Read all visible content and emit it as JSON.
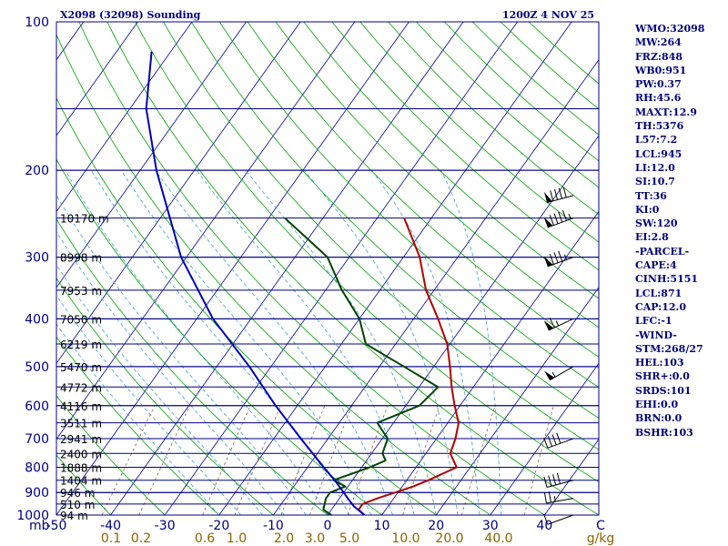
{
  "chart_data": {
    "type": "line",
    "title": "X2098 (32098) Sounding",
    "valid_time": "1200Z  4 NOV 25",
    "x_axis": {
      "label": "C",
      "range": [
        -50,
        50
      ],
      "ticks": [
        -40,
        -30,
        -20,
        -10,
        0,
        10,
        20,
        30,
        40
      ],
      "tick_labels": [
        "-40",
        "-30",
        "-20",
        "-10",
        "0",
        "10",
        "20",
        "30",
        "40"
      ],
      "start_label": "-50",
      "unit_label": "C"
    },
    "y_axis": {
      "label": "mb",
      "range": [
        1000,
        100
      ],
      "ticks": [
        100,
        200,
        300,
        400,
        500,
        600,
        700,
        800,
        900,
        1000
      ],
      "tick_labels": [
        "100",
        "200",
        "300",
        "400",
        "500",
        "600",
        "700",
        "800",
        "900",
        "1000"
      ]
    },
    "mixing_ratio_labels": [
      "0.1",
      "0.2",
      "0.6",
      "1.0",
      "2.0",
      "3.0",
      "5.0",
      "10.0",
      "20.0",
      "40.0",
      "g/kg"
    ],
    "mixing_ratio_values": [
      0.1,
      0.2,
      0.6,
      1.0,
      2.0,
      3.0,
      5.0,
      10.0,
      20.0,
      40.0
    ],
    "height_levels": [
      {
        "p": 250,
        "label": "10170 m"
      },
      {
        "p": 300,
        "label": "8998 m"
      },
      {
        "p": 350,
        "label": "7953 m"
      },
      {
        "p": 400,
        "label": "7050 m"
      },
      {
        "p": 450,
        "label": "6219 m"
      },
      {
        "p": 500,
        "label": "5470 m"
      },
      {
        "p": 550,
        "label": "4772 m"
      },
      {
        "p": 600,
        "label": "4116 m"
      },
      {
        "p": 650,
        "label": "3511 m"
      },
      {
        "p": 700,
        "label": "2941 m"
      },
      {
        "p": 750,
        "label": "2400 m"
      },
      {
        "p": 800,
        "label": "1888 m"
      },
      {
        "p": 850,
        "label": "1404 m"
      },
      {
        "p": 900,
        "label": "946 m"
      },
      {
        "p": 950,
        "label": "510 m"
      },
      {
        "p": 1000,
        "label": "94 m"
      }
    ],
    "series": [
      {
        "name": "Temperature",
        "color": "#b40000",
        "points": [
          [
            1000,
            6.8
          ],
          [
            975,
            5.0
          ],
          [
            950,
            5.0
          ],
          [
            925,
            7.0
          ],
          [
            900,
            9.5
          ],
          [
            875,
            12.0
          ],
          [
            850,
            14.0
          ],
          [
            800,
            17.5
          ],
          [
            750,
            14.5
          ],
          [
            700,
            13.5
          ],
          [
            650,
            12.0
          ],
          [
            600,
            9.0
          ],
          [
            550,
            6.0
          ],
          [
            500,
            3.0
          ],
          [
            450,
            -0.5
          ],
          [
            400,
            -5.5
          ],
          [
            350,
            -11.5
          ],
          [
            300,
            -17.0
          ],
          [
            250,
            -25.0
          ]
        ]
      },
      {
        "name": "Dewpoint",
        "color": "#004400",
        "points": [
          [
            1000,
            0.7
          ],
          [
            975,
            -1.5
          ],
          [
            950,
            -2.0
          ],
          [
            925,
            -2.5
          ],
          [
            900,
            -2.5
          ],
          [
            875,
            -0.5
          ],
          [
            850,
            -3.5
          ],
          [
            800,
            1.5
          ],
          [
            775,
            3.5
          ],
          [
            750,
            2.0
          ],
          [
            700,
            1.0
          ],
          [
            650,
            -3.0
          ],
          [
            600,
            2.5
          ],
          [
            550,
            3.5
          ],
          [
            500,
            -5.5
          ],
          [
            450,
            -15.5
          ],
          [
            400,
            -20.0
          ],
          [
            350,
            -27.0
          ],
          [
            300,
            -34.0
          ],
          [
            250,
            -47.0
          ]
        ]
      },
      {
        "name": "Parcel",
        "color": "#0000b4",
        "points": [
          [
            1000,
            6.8
          ],
          [
            960,
            3.7
          ],
          [
            925,
            1.5
          ],
          [
            900,
            0.0
          ],
          [
            850,
            -3.3
          ],
          [
            800,
            -7.0
          ],
          [
            700,
            -15.0
          ],
          [
            600,
            -24.0
          ],
          [
            500,
            -34.0
          ],
          [
            400,
            -47.0
          ],
          [
            300,
            -61.0
          ],
          [
            200,
            -77.0
          ],
          [
            150,
            -87.0
          ],
          [
            115,
            -93.5
          ]
        ]
      }
    ],
    "wind_barbs": [
      {
        "p": 1000,
        "dir": 250,
        "spd": 10
      },
      {
        "p": 925,
        "dir": 260,
        "spd": 25
      },
      {
        "p": 850,
        "dir": 255,
        "spd": 40
      },
      {
        "p": 700,
        "dir": 250,
        "spd": 40
      },
      {
        "p": 500,
        "dir": 240,
        "spd": 55
      },
      {
        "p": 400,
        "dir": 245,
        "spd": 65
      },
      {
        "p": 300,
        "dir": 250,
        "spd": 85
      },
      {
        "p": 250,
        "dir": 250,
        "spd": 95
      },
      {
        "p": 225,
        "dir": 255,
        "spd": 90
      }
    ],
    "grid": true,
    "skew_factor": 65
  },
  "indices": [
    "WMO:32098",
    "MW:264",
    "FRZ:848",
    "WB0:951",
    "PW:0.37",
    "RH:45.6",
    "MAXT:12.9",
    "TH:5376",
    "L57:7.2",
    "LCL:945",
    "LI:12.0",
    "SI:10.7",
    "TT:36",
    "KI:0",
    "SW:120",
    "EI:2.8",
    "-PARCEL-",
    "CAPE:4",
    "CINH:5151",
    "LCL:871",
    "CAP:12.0",
    "LFC:-1",
    "-WIND-",
    "STM:268/27",
    "HEL:103",
    "SHR+:0.0",
    "SRDS:101",
    "EHI:0.0",
    "BRN:0.0",
    "BSHR:103"
  ],
  "colors": {
    "border": "#000080",
    "isobar": "#000080",
    "isotherm": "#00009a",
    "dry_adiabat": "#00a000",
    "moist_adiabat": "#3ca0c8",
    "mixing_ratio": "#8c6450",
    "mixing_label": "#8c6400",
    "text": "#000000",
    "title": "#000080"
  }
}
